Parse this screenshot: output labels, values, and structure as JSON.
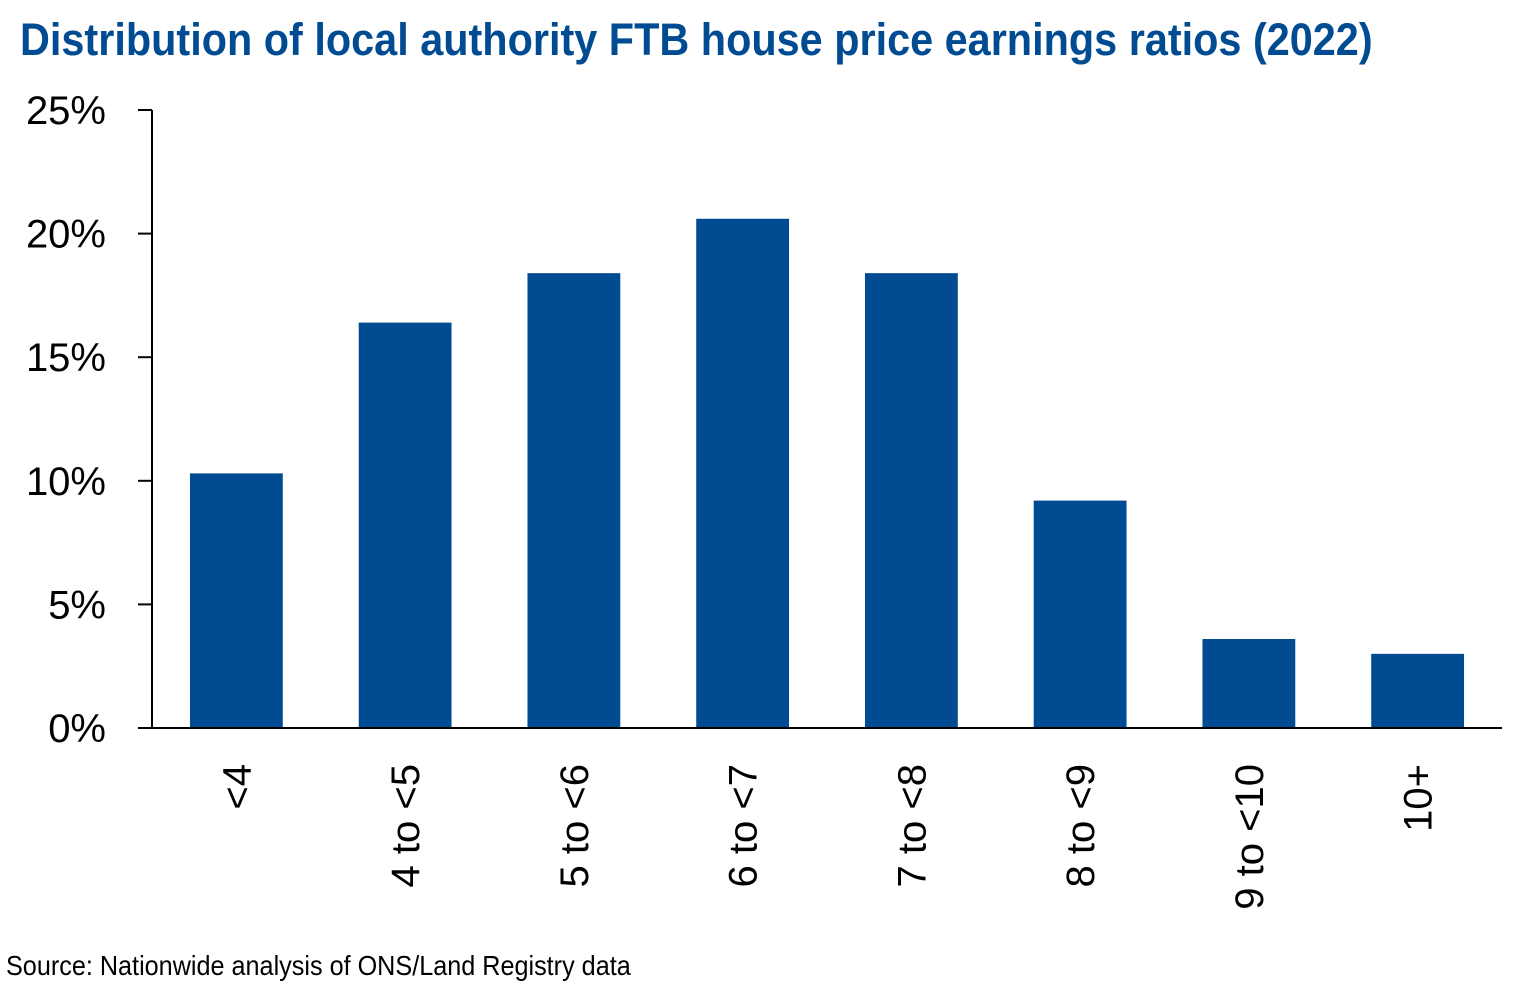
{
  "chart_data": {
    "type": "bar",
    "title": "Distribution of local authority FTB house price earnings ratios (2022)",
    "xlabel": "",
    "ylabel": "",
    "categories": [
      "<4",
      "4 to <5",
      "5 to <6",
      "6 to <7",
      "7 to <8",
      "8 to <9",
      "9 to <10",
      "10+"
    ],
    "values": [
      10.3,
      16.4,
      18.4,
      20.6,
      18.4,
      9.2,
      3.6,
      3.0
    ],
    "value_format": "percent",
    "ylim": [
      0,
      25
    ],
    "yticks": [
      0,
      5,
      10,
      15,
      20,
      25
    ],
    "ytick_labels": [
      "0%",
      "5%",
      "10%",
      "15%",
      "20%",
      "25%"
    ],
    "grid": false,
    "legend": "none",
    "bar_color": "#004b91"
  },
  "source": "Source: Nationwide analysis of ONS/Land Registry data",
  "colors": {
    "title": "#004b91",
    "bar": "#004b91",
    "axis": "#000000"
  }
}
